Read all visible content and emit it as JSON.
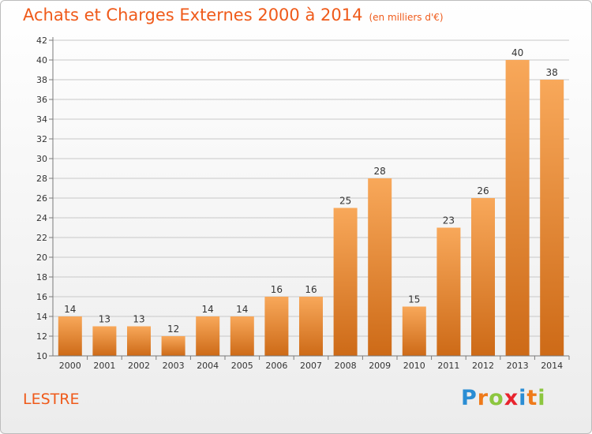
{
  "title": "Achats et Charges Externes 2000 à 2014",
  "unit": "(en milliers d'€)",
  "place": "LESTRE",
  "logo": {
    "text": "Proxiti",
    "letters": [
      "P",
      "r",
      "o",
      "x",
      "i",
      "t",
      "i"
    ],
    "colors": [
      "#2a8dd4",
      "#ef7a1a",
      "#8cc63f",
      "#e8232d",
      "#2a8dd4",
      "#ef7a1a",
      "#8cc63f"
    ]
  },
  "colors": {
    "title": "#ef5a1a",
    "bar_light": "#f8a85a",
    "bar_dark": "#cd6a17",
    "grid": "#c8c8c8",
    "axis": "#7a7a7a"
  },
  "chart_data": {
    "type": "bar",
    "categories": [
      "2000",
      "2001",
      "2002",
      "2003",
      "2004",
      "2005",
      "2006",
      "2007",
      "2008",
      "2009",
      "2010",
      "2011",
      "2012",
      "2013",
      "2014"
    ],
    "values": [
      14,
      13,
      13,
      12,
      14,
      14,
      16,
      16,
      25,
      28,
      15,
      23,
      26,
      40,
      38
    ],
    "ylim": [
      10,
      42
    ],
    "ytick_step": 2,
    "grid": true,
    "data_labels": true
  }
}
